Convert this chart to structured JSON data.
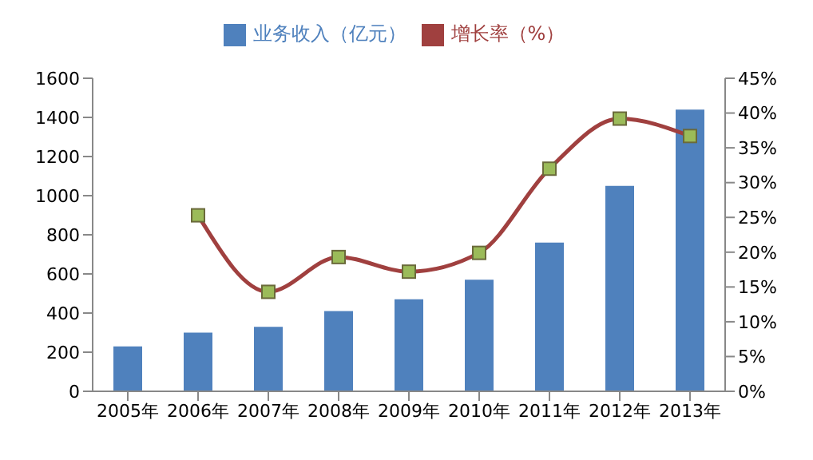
{
  "chart_data": {
    "type": "bar",
    "categories": [
      "2005年",
      "2006年",
      "2007年",
      "2008年",
      "2009年",
      "2010年",
      "2011年",
      "2012年",
      "2013年"
    ],
    "series": [
      {
        "name": "业务收入（亿元）",
        "color": "#4f81bd",
        "values": [
          230,
          300,
          330,
          410,
          470,
          570,
          760,
          1050,
          1440
        ]
      },
      {
        "name": "增长率（%）",
        "type": "line",
        "axis": "y2",
        "color": "#a0403f",
        "values": [
          null,
          25.3,
          14.3,
          19.3,
          17.2,
          19.9,
          32,
          39.2,
          36.7
        ]
      }
    ],
    "ylim": [
      0,
      1600
    ],
    "yticks": [
      0,
      200,
      400,
      600,
      800,
      1000,
      1200,
      1400,
      1600
    ],
    "y2lim": [
      0,
      45
    ],
    "y2ticks": [
      {
        "value": 0,
        "label": "0%"
      },
      {
        "value": 5,
        "label": "5%"
      },
      {
        "value": 10,
        "label": "10%"
      },
      {
        "value": 15,
        "label": "15%"
      },
      {
        "value": 20,
        "label": "20%"
      },
      {
        "value": 25,
        "label": "25%"
      },
      {
        "value": 30,
        "label": "30%"
      },
      {
        "value": 35,
        "label": "35%"
      },
      {
        "value": 40,
        "label": "40%"
      },
      {
        "value": 45,
        "label": "45%"
      }
    ],
    "marker": "square",
    "grid": false,
    "legend": "top"
  }
}
